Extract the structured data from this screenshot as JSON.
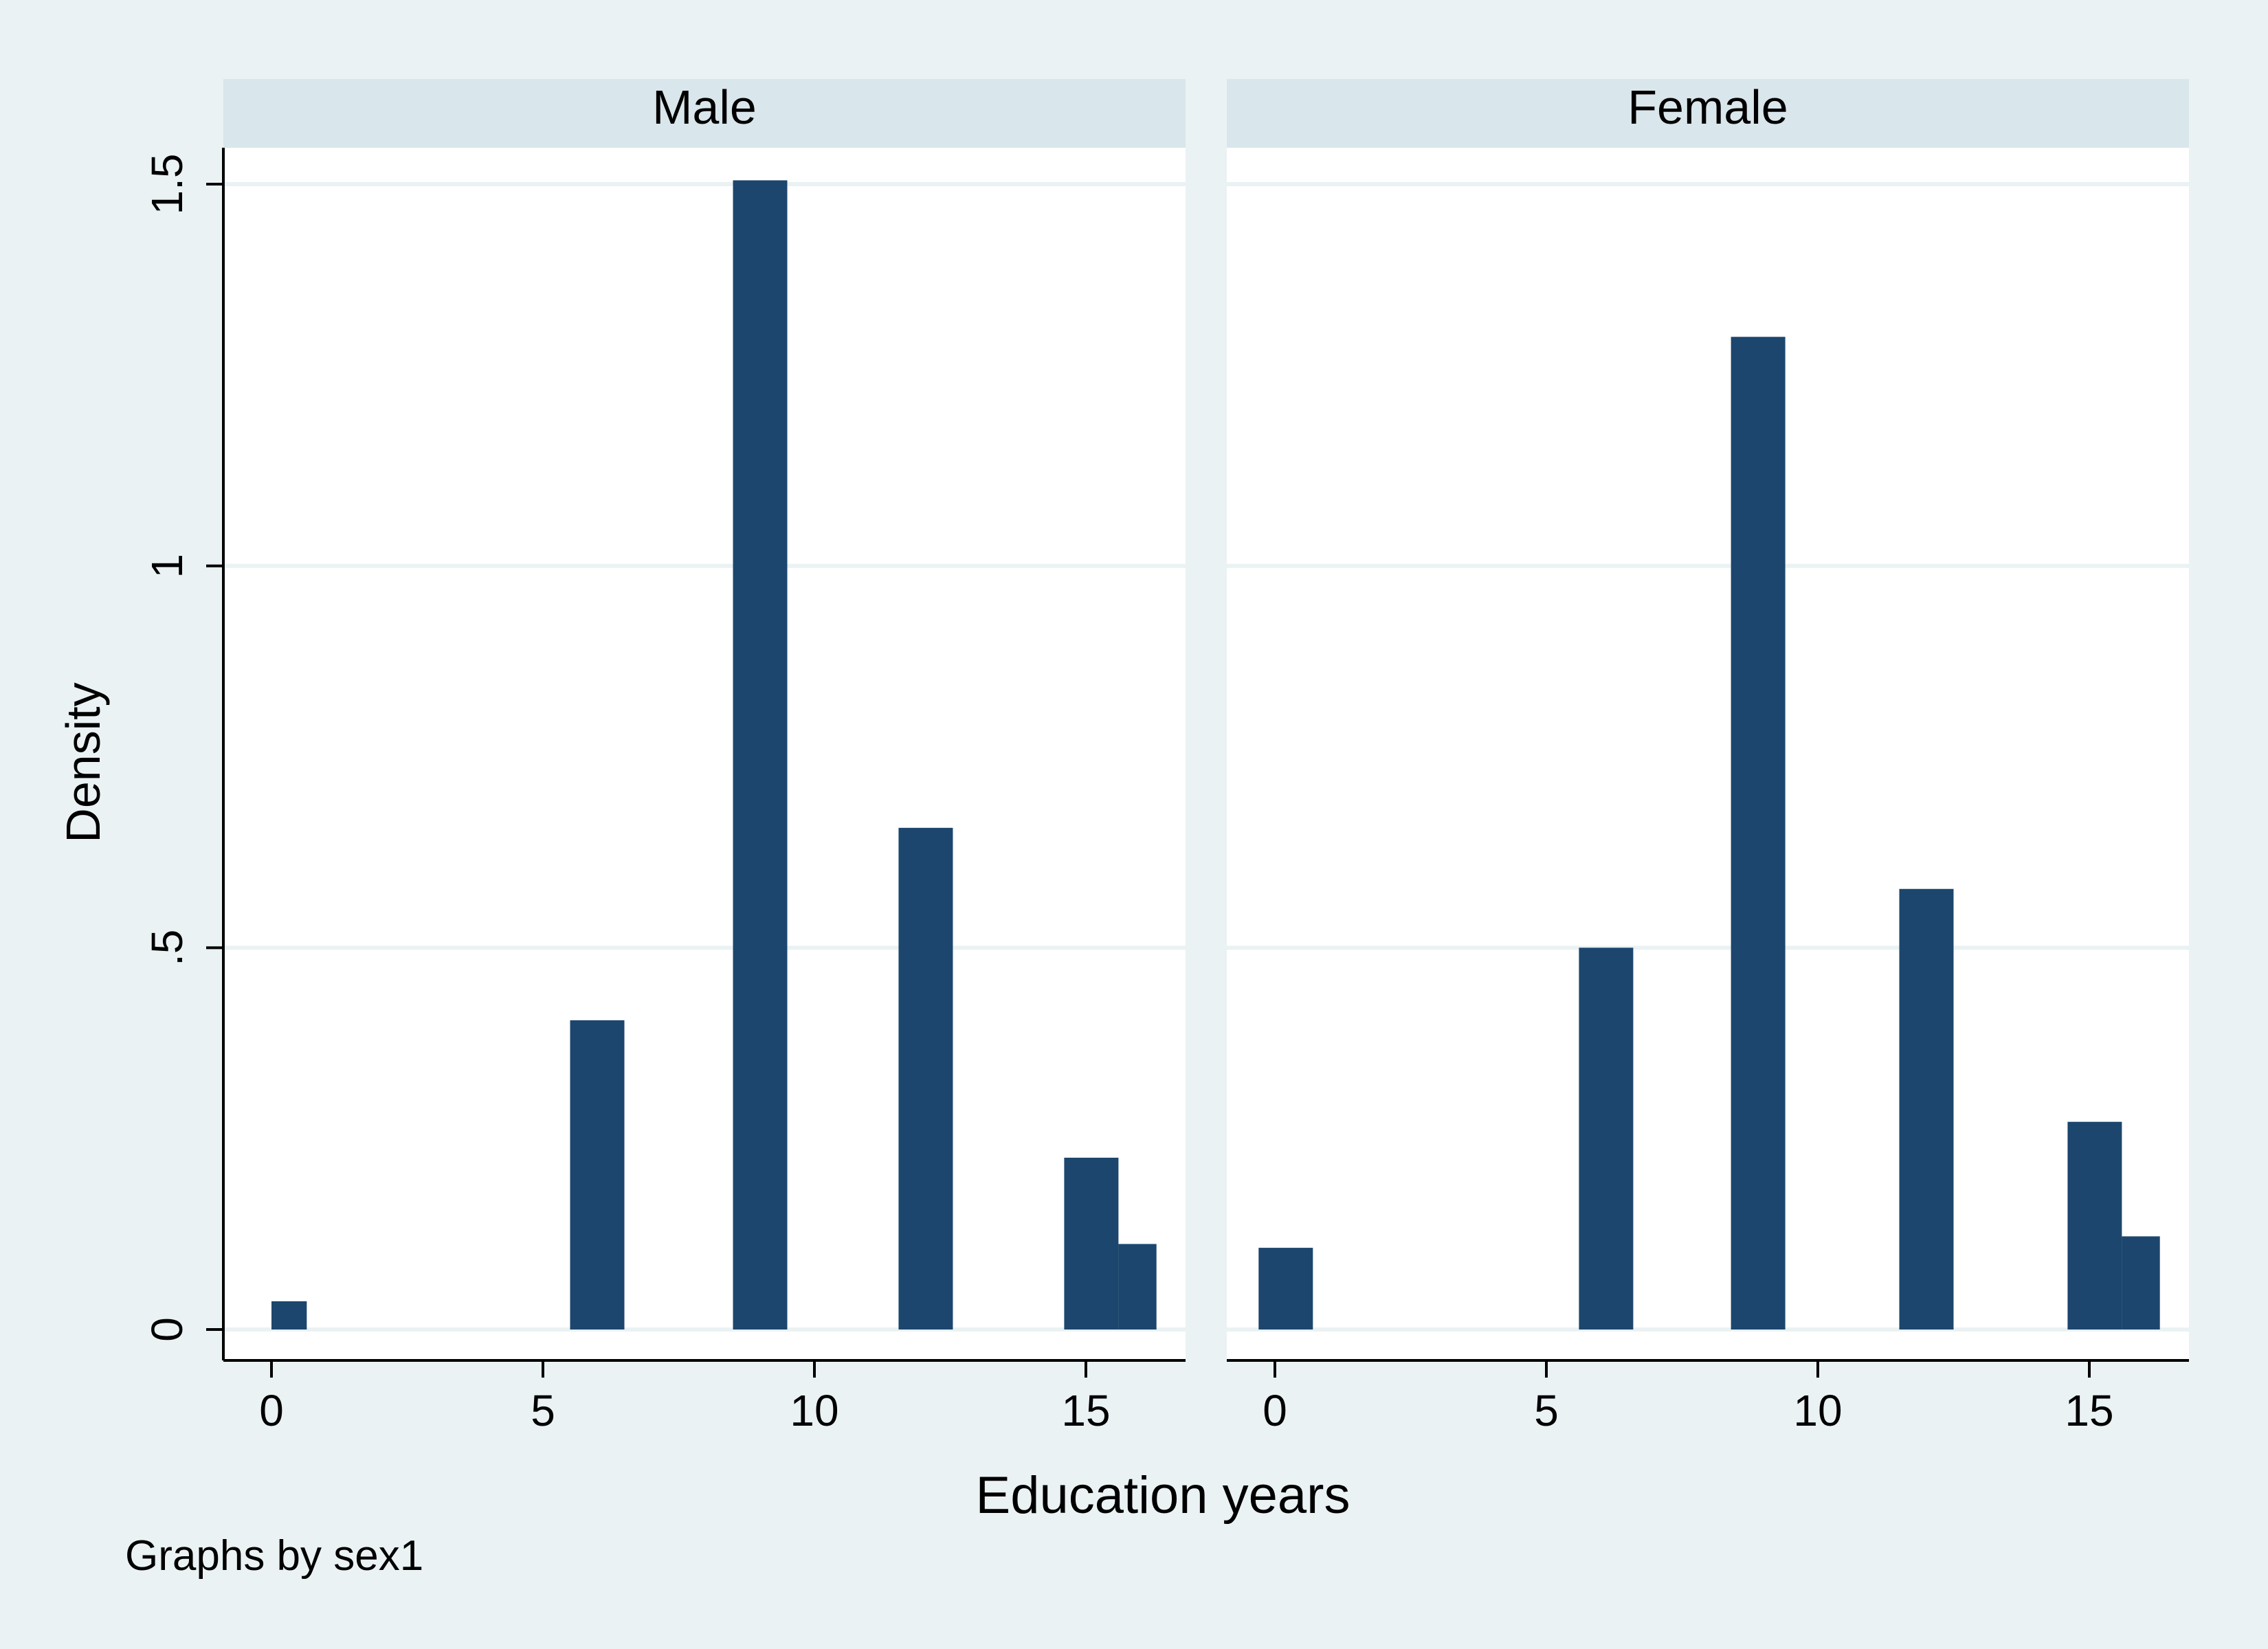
{
  "chart_data": {
    "type": "bar",
    "subtype": "histogram",
    "ylabel": "Density",
    "xlabel": "Education years",
    "note": "Graphs by sex1",
    "ylim": [
      0,
      1.5
    ],
    "xlim": [
      0,
      16.5
    ],
    "yticks": [
      0,
      0.5,
      1,
      1.5
    ],
    "yticklabels": [
      "0",
      ".5",
      "1",
      "1.5"
    ],
    "xticks": [
      0,
      5,
      10,
      15
    ],
    "xticklabels": [
      "0",
      "5",
      "10",
      "15"
    ],
    "grid": true,
    "colors": {
      "bar": "#1c466d",
      "panel_header": "#d9e6eb",
      "background": "#eaf2f3",
      "plot": "#ffffff",
      "grid": "#eaf2f3"
    },
    "panels": [
      {
        "name": "Male",
        "bins": [
          {
            "x0": 0,
            "x1": 0.65,
            "density": 0.037
          },
          {
            "x0": 5.5,
            "x1": 6.5,
            "density": 0.405
          },
          {
            "x0": 8.5,
            "x1": 9.5,
            "density": 1.505
          },
          {
            "x0": 11.55,
            "x1": 12.55,
            "density": 0.657
          },
          {
            "x0": 14.6,
            "x1": 15.6,
            "density": 0.225
          },
          {
            "x0": 15.6,
            "x1": 16.3,
            "density": 0.112
          }
        ]
      },
      {
        "name": "Female",
        "bins": [
          {
            "x0": -0.3,
            "x1": 0.7,
            "density": 0.107
          },
          {
            "x0": 5.6,
            "x1": 6.6,
            "density": 0.5
          },
          {
            "x0": 8.4,
            "x1": 9.4,
            "density": 1.3
          },
          {
            "x0": 11.5,
            "x1": 12.5,
            "density": 0.577
          },
          {
            "x0": 14.6,
            "x1": 15.6,
            "density": 0.272
          },
          {
            "x0": 15.6,
            "x1": 16.3,
            "density": 0.122
          }
        ]
      }
    ]
  }
}
